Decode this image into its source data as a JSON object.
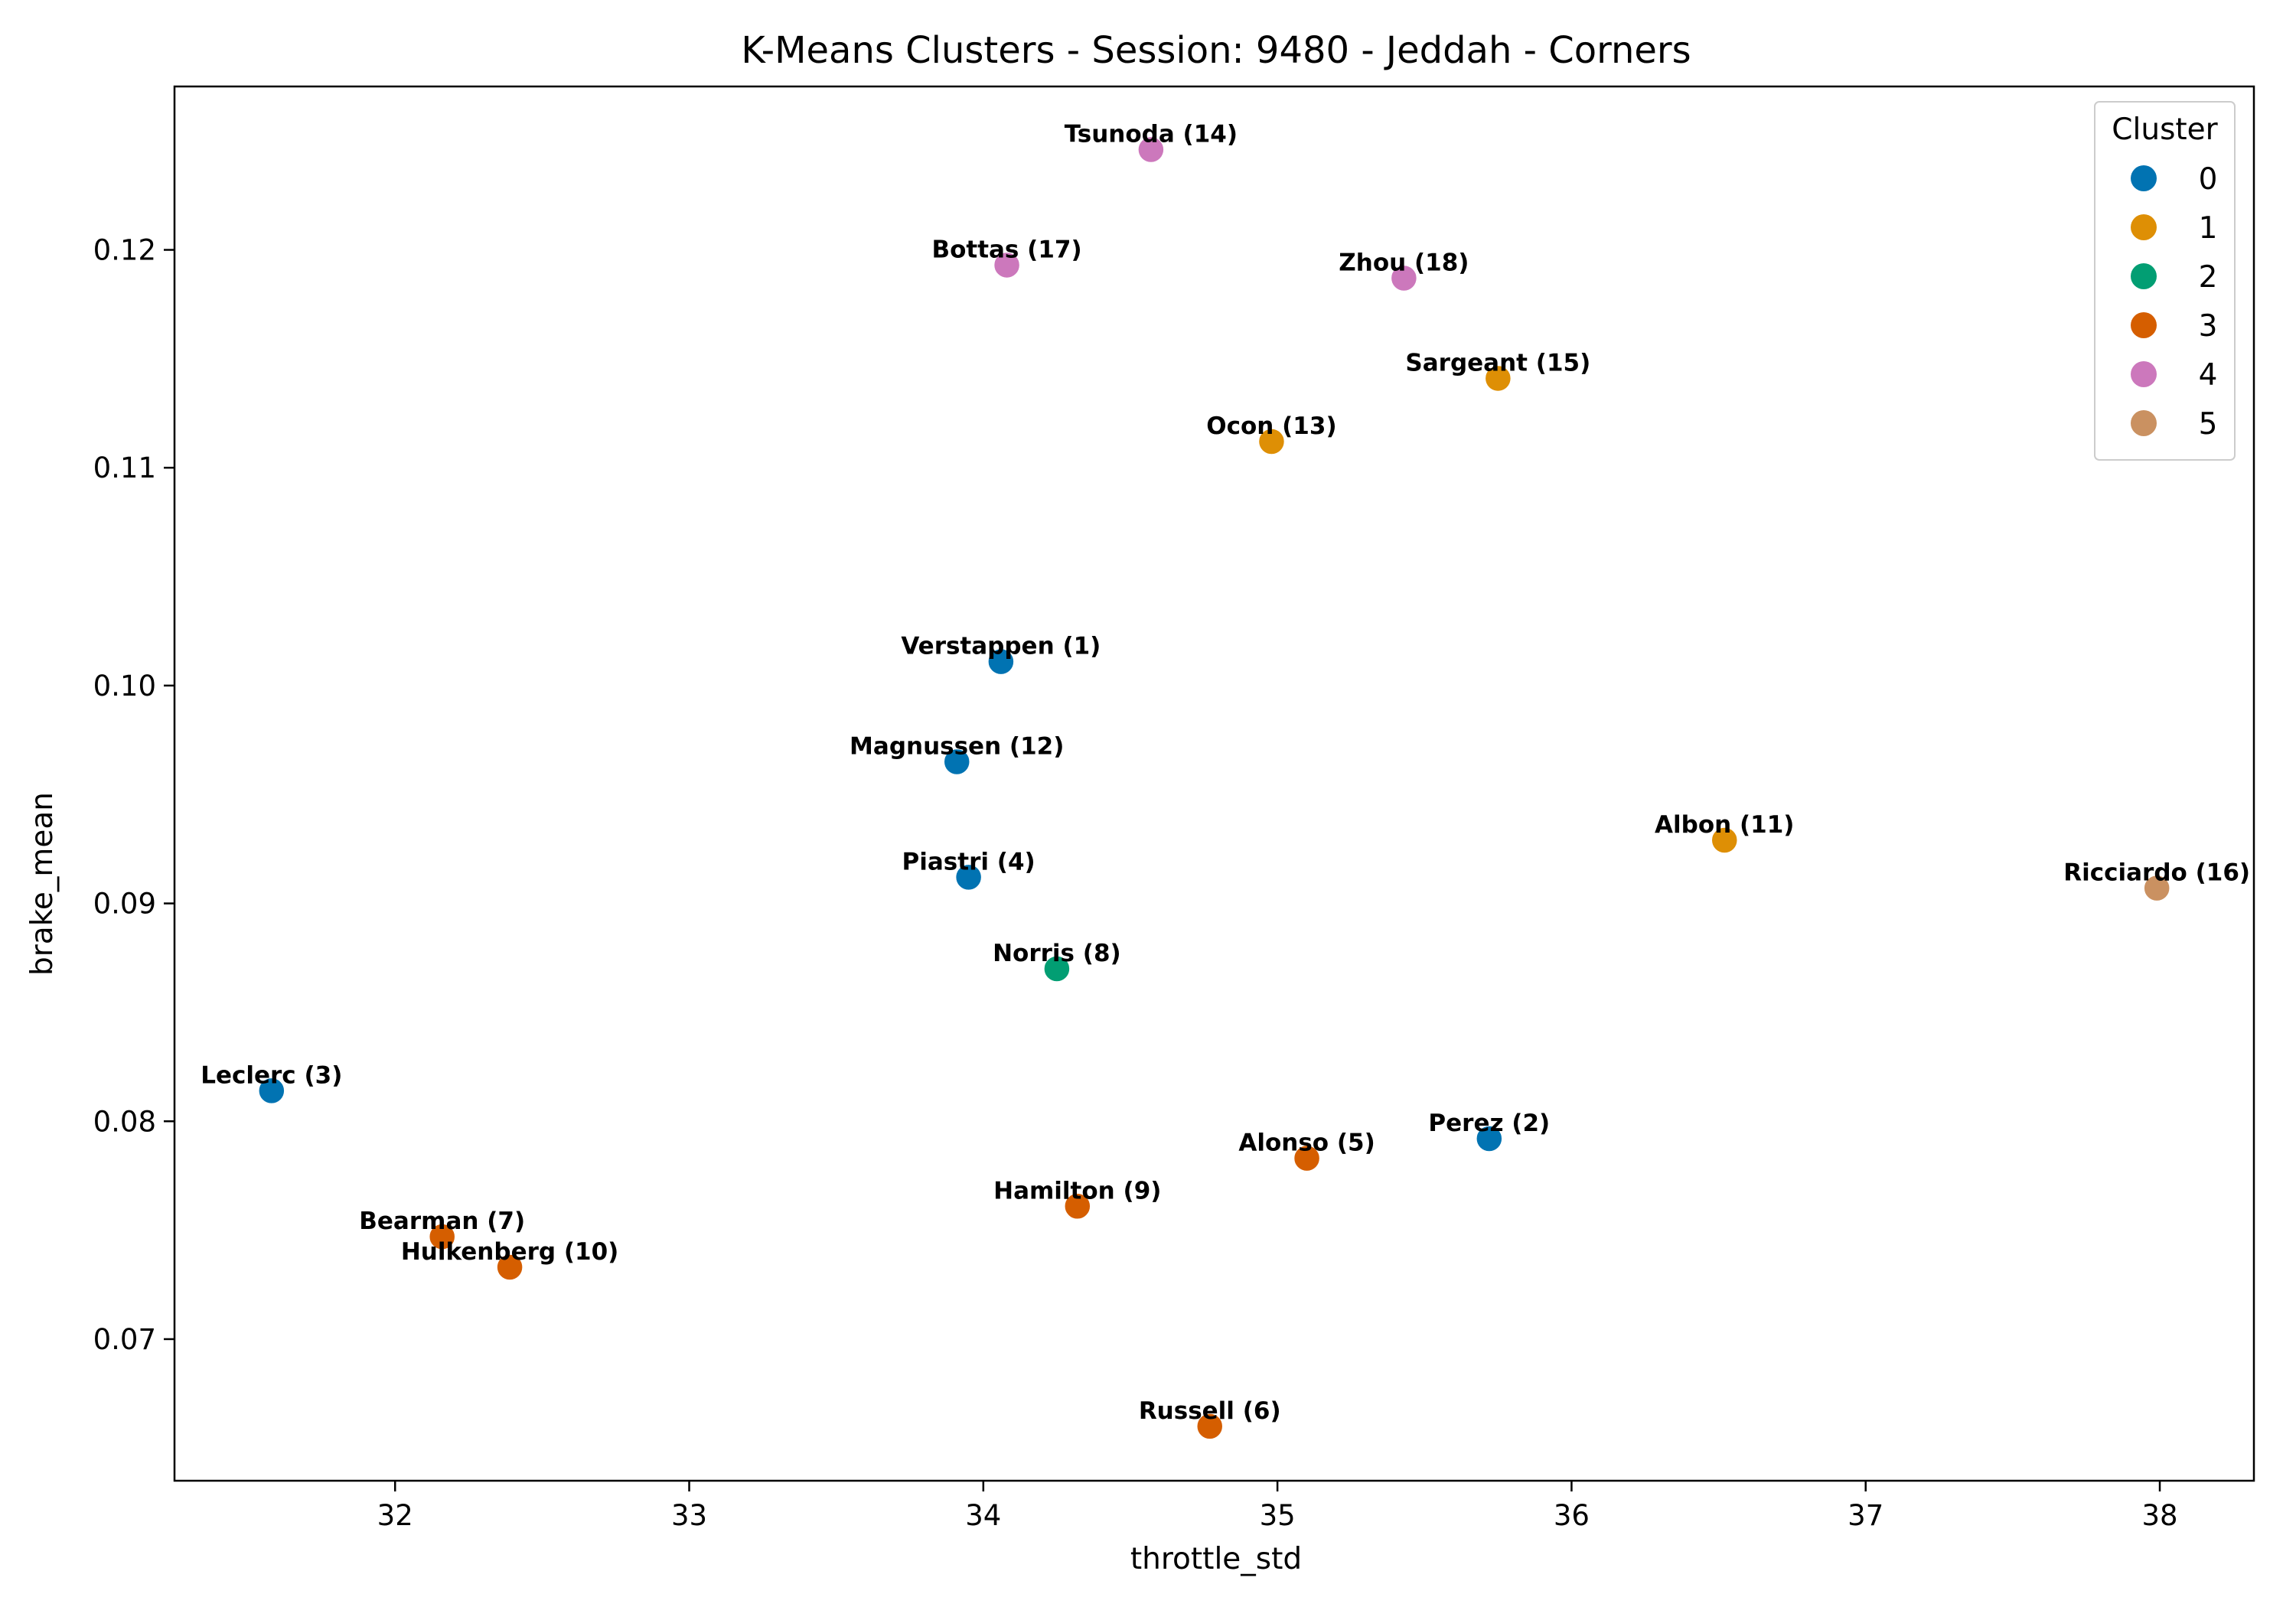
{
  "chart_data": {
    "type": "scatter",
    "title": "K-Means Clusters - Session: 9480 - Jeddah - Corners",
    "xlabel": "throttle_std",
    "ylabel": "brake_mean",
    "xlim": [
      31.25,
      38.32
    ],
    "ylim": [
      0.0635,
      0.1275
    ],
    "xticks": [
      32,
      33,
      34,
      35,
      36,
      37,
      38
    ],
    "xtick_labels": [
      "32",
      "33",
      "34",
      "35",
      "36",
      "37",
      "38"
    ],
    "yticks": [
      0.07,
      0.08,
      0.09,
      0.1,
      0.11,
      0.12
    ],
    "ytick_labels": [
      "0.07",
      "0.08",
      "0.09",
      "0.10",
      "0.11",
      "0.12"
    ],
    "grid": false,
    "legend": {
      "title": "Cluster",
      "placement": "top-right",
      "entries": [
        {
          "label": "0",
          "color": "#0173b2"
        },
        {
          "label": "1",
          "color": "#de8f05"
        },
        {
          "label": "2",
          "color": "#029e73"
        },
        {
          "label": "3",
          "color": "#d55e00"
        },
        {
          "label": "4",
          "color": "#cc78bc"
        },
        {
          "label": "5",
          "color": "#ca9161"
        }
      ]
    },
    "points": [
      {
        "label": "Tsunoda (14)",
        "x": 34.57,
        "y": 0.1246,
        "cluster": 4
      },
      {
        "label": "Bottas (17)",
        "x": 34.08,
        "y": 0.1193,
        "cluster": 4
      },
      {
        "label": "Zhou (18)",
        "x": 35.43,
        "y": 0.1187,
        "cluster": 4
      },
      {
        "label": "Sargeant (15)",
        "x": 35.75,
        "y": 0.1141,
        "cluster": 1
      },
      {
        "label": "Ocon (13)",
        "x": 34.98,
        "y": 0.1112,
        "cluster": 1
      },
      {
        "label": "Verstappen (1)",
        "x": 34.06,
        "y": 0.1011,
        "cluster": 0
      },
      {
        "label": "Magnussen (12)",
        "x": 33.91,
        "y": 0.0965,
        "cluster": 0
      },
      {
        "label": "Albon (11)",
        "x": 36.52,
        "y": 0.0929,
        "cluster": 1
      },
      {
        "label": "Piastri (4)",
        "x": 33.95,
        "y": 0.0912,
        "cluster": 0
      },
      {
        "label": "Ricciardo (16)",
        "x": 37.99,
        "y": 0.0907,
        "cluster": 5
      },
      {
        "label": "Norris (8)",
        "x": 34.25,
        "y": 0.087,
        "cluster": 2
      },
      {
        "label": "Leclerc (3)",
        "x": 31.58,
        "y": 0.0814,
        "cluster": 0
      },
      {
        "label": "Perez (2)",
        "x": 35.72,
        "y": 0.0792,
        "cluster": 0
      },
      {
        "label": "Alonso (5)",
        "x": 35.1,
        "y": 0.0783,
        "cluster": 3
      },
      {
        "label": "Hamilton (9)",
        "x": 34.32,
        "y": 0.0761,
        "cluster": 3
      },
      {
        "label": "Bearman (7)",
        "x": 32.16,
        "y": 0.0747,
        "cluster": 3
      },
      {
        "label": "Hulkenberg (10)",
        "x": 32.39,
        "y": 0.0733,
        "cluster": 3
      },
      {
        "label": "Russell (6)",
        "x": 34.77,
        "y": 0.066,
        "cluster": 3
      }
    ]
  }
}
